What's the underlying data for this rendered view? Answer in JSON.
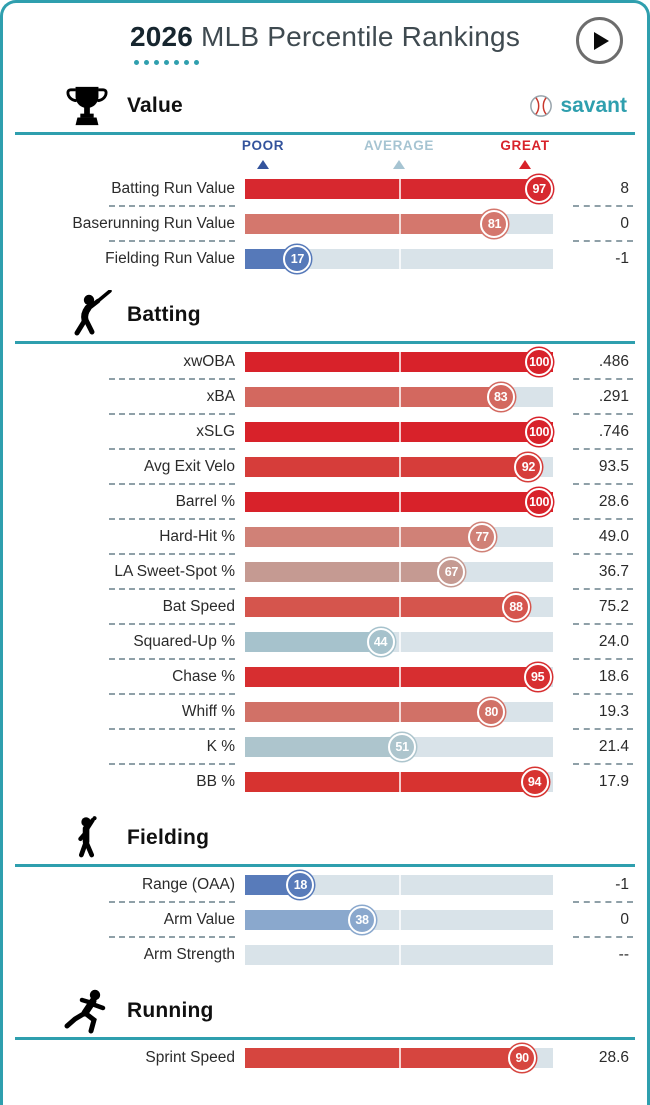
{
  "title": {
    "year": "2026",
    "rest": "MLB Percentile Rankings"
  },
  "brand": {
    "name": "savant"
  },
  "scale_labels": {
    "poor": "POOR",
    "average": "AVERAGE",
    "great": "GREAT"
  },
  "colors": {
    "teal": "#2f9fae",
    "poor": "#33539c",
    "average": "#a6c4d2",
    "great": "#d8222a",
    "track": "#d9e3e9"
  },
  "chart_data": {
    "type": "bar",
    "title": "2026 MLB Percentile Rankings",
    "x_range": [
      0,
      100
    ],
    "scale_labels": [
      "POOR",
      "AVERAGE",
      "GREAT"
    ],
    "sections": [
      {
        "name": "Value",
        "icon": "trophy-icon",
        "show_brand": true,
        "show_scale": true,
        "rows": [
          {
            "label": "Batting Run Value",
            "percentile": 97,
            "value": "8",
            "color": "#d7282f"
          },
          {
            "label": "Baserunning Run Value",
            "percentile": 81,
            "value": "0",
            "color": "#d4776d"
          },
          {
            "label": "Fielding Run Value",
            "percentile": 17,
            "value": "-1",
            "color": "#5679b9"
          }
        ]
      },
      {
        "name": "Batting",
        "icon": "batter-icon",
        "show_brand": false,
        "show_scale": false,
        "rows": [
          {
            "label": "xwOBA",
            "percentile": 100,
            "value": ".486",
            "color": "#d8222a"
          },
          {
            "label": "xBA",
            "percentile": 83,
            "value": ".291",
            "color": "#d3685f"
          },
          {
            "label": "xSLG",
            "percentile": 100,
            "value": ".746",
            "color": "#d8222a"
          },
          {
            "label": "Avg Exit Velo",
            "percentile": 92,
            "value": "93.5",
            "color": "#d63d3a"
          },
          {
            "label": "Barrel %",
            "percentile": 100,
            "value": "28.6",
            "color": "#d8222a"
          },
          {
            "label": "Hard-Hit %",
            "percentile": 77,
            "value": "49.0",
            "color": "#d08177"
          },
          {
            "label": "LA Sweet-Spot %",
            "percentile": 67,
            "value": "36.7",
            "color": "#c59a92"
          },
          {
            "label": "Bat Speed",
            "percentile": 88,
            "value": "75.2",
            "color": "#d5554d"
          },
          {
            "label": "Squared-Up %",
            "percentile": 44,
            "value": "24.0",
            "color": "#a6c2cc"
          },
          {
            "label": "Chase %",
            "percentile": 95,
            "value": "18.6",
            "color": "#d72e30"
          },
          {
            "label": "Whiff %",
            "percentile": 80,
            "value": "19.3",
            "color": "#d17167"
          },
          {
            "label": "K %",
            "percentile": 51,
            "value": "21.4",
            "color": "#adc5cd"
          },
          {
            "label": "BB %",
            "percentile": 94,
            "value": "17.9",
            "color": "#d73330"
          }
        ]
      },
      {
        "name": "Fielding",
        "icon": "fielder-icon",
        "show_brand": false,
        "show_scale": false,
        "rows": [
          {
            "label": "Range (OAA)",
            "percentile": 18,
            "value": "-1",
            "color": "#587bba"
          },
          {
            "label": "Arm Value",
            "percentile": 38,
            "value": "0",
            "color": "#8aa8cd"
          },
          {
            "label": "Arm Strength",
            "percentile": null,
            "value": "--",
            "color": null
          }
        ]
      },
      {
        "name": "Running",
        "icon": "runner-icon",
        "show_brand": false,
        "show_scale": false,
        "rows": [
          {
            "label": "Sprint Speed",
            "percentile": 90,
            "value": "28.6",
            "color": "#d6453f"
          }
        ]
      }
    ]
  }
}
